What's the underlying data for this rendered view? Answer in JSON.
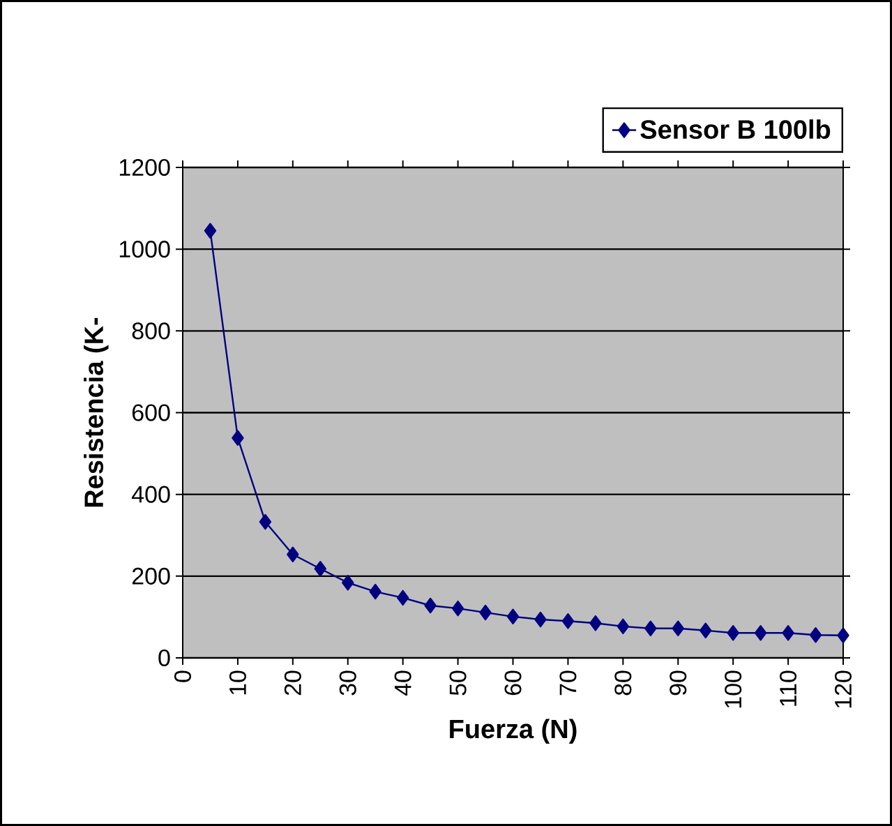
{
  "chart_data": {
    "type": "line",
    "xlabel": "Fuerza (N)",
    "ylabel": "Resistencia (K-",
    "x": [
      5,
      10,
      15,
      20,
      25,
      30,
      35,
      40,
      45,
      50,
      55,
      60,
      65,
      70,
      75,
      80,
      85,
      90,
      95,
      100,
      105,
      110,
      115,
      120
    ],
    "series": [
      {
        "name": "Sensor B 100lb",
        "color": "#000080",
        "values": [
          1045,
          538,
          333,
          253,
          218,
          184,
          162,
          147,
          128,
          121,
          111,
          101,
          94,
          90,
          85,
          77,
          72,
          72,
          67,
          61,
          61,
          61,
          56,
          55
        ]
      }
    ],
    "xlim": [
      0,
      120
    ],
    "ylim": [
      0,
      1200
    ],
    "xticks": [
      0,
      10,
      20,
      30,
      40,
      50,
      60,
      70,
      80,
      90,
      100,
      110,
      120
    ],
    "yticks": [
      0,
      200,
      400,
      600,
      800,
      1000,
      1200
    ],
    "grid": "y",
    "legend": "top right",
    "marker": "diamond",
    "line_style": "solid"
  }
}
